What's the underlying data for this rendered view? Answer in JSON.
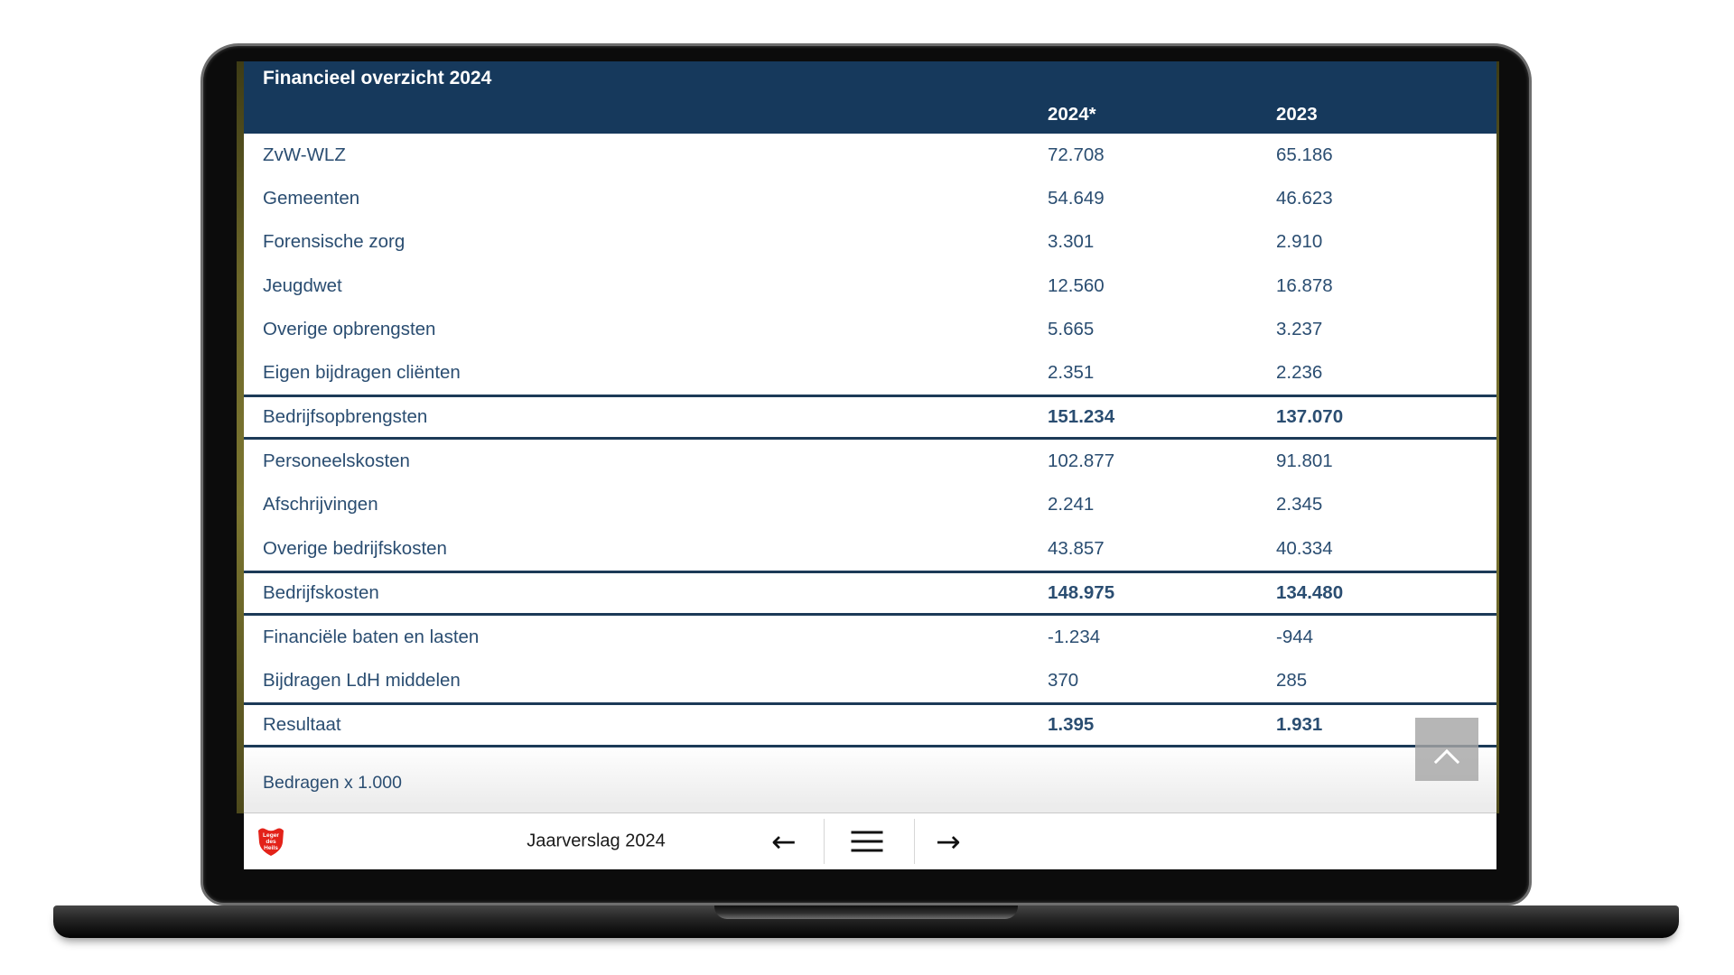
{
  "report": {
    "title": "Financieel overzicht 2024",
    "columns": [
      {
        "label": "2024*"
      },
      {
        "label": "2023"
      }
    ],
    "rows": [
      {
        "label": "ZvW-WLZ",
        "v2024": "72.708",
        "v2023": "65.186",
        "style": "regular"
      },
      {
        "label": "Gemeenten",
        "v2024": "54.649",
        "v2023": "46.623",
        "style": "regular"
      },
      {
        "label": "Forensische zorg",
        "v2024": "3.301",
        "v2023": "2.910",
        "style": "regular"
      },
      {
        "label": "Jeugdwet",
        "v2024": "12.560",
        "v2023": "16.878",
        "style": "regular"
      },
      {
        "label": "Overige opbrengsten",
        "v2024": "5.665",
        "v2023": "3.237",
        "style": "regular"
      },
      {
        "label": "Eigen bijdragen cliënten",
        "v2024": "2.351",
        "v2023": "2.236",
        "style": "regular"
      },
      {
        "label": "Bedrijfsopbrengsten",
        "v2024": "151.234",
        "v2023": "137.070",
        "style": "total"
      },
      {
        "label": "Personeelskosten",
        "v2024": "102.877",
        "v2023": "91.801",
        "style": "regular"
      },
      {
        "label": "Afschrijvingen",
        "v2024": "2.241",
        "v2023": "2.345",
        "style": "regular"
      },
      {
        "label": "Overige bedrijfskosten",
        "v2024": "43.857",
        "v2023": "40.334",
        "style": "regular"
      },
      {
        "label": "Bedrijfskosten",
        "v2024": "148.975",
        "v2023": "134.480",
        "style": "total"
      },
      {
        "label": "Financiële baten en lasten",
        "v2024": "-1.234",
        "v2023": "-944",
        "style": "regular"
      },
      {
        "label": "Bijdragen LdH middelen",
        "v2024": "370",
        "v2023": "285",
        "style": "regular"
      },
      {
        "label": "Resultaat",
        "v2024": "1.395",
        "v2023": "1.931",
        "style": "total"
      }
    ],
    "footnote": "Bedragen x 1.000"
  },
  "navbar": {
    "title": "Jaarverslag 2024",
    "logo": {
      "icon": "salvation-army-shield-icon",
      "color": "#e32219",
      "lines": {
        "0": "Leger",
        "1": "des",
        "2": "Heils"
      }
    },
    "back_icon": "←",
    "menu_icon": "hamburger",
    "forward_icon": "→"
  },
  "scroll_top": {
    "icon": "chevron-up"
  },
  "colors": {
    "header_bg": "#16395c",
    "table_text": "#2a4d71",
    "rule": "#1c3a57",
    "logo_red": "#e32219",
    "edge_olive": "#6e682a",
    "scroll_button_grey": "#a6a6a6"
  }
}
